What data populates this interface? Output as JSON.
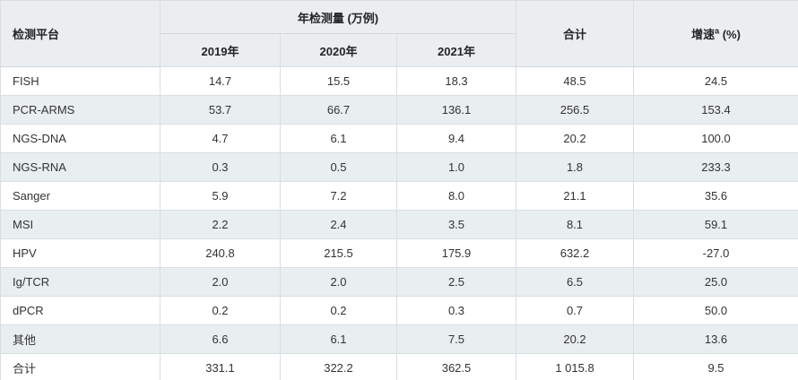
{
  "table": {
    "header": {
      "platform_label": "检测平台",
      "group_label": "年检测量 (万例)",
      "year_labels": [
        "2019年",
        "2020年",
        "2021年"
      ],
      "total_label": "合计",
      "growth_label": "增速",
      "growth_sup": "a",
      "growth_unit": " (%)"
    },
    "rows": [
      {
        "platform": "FISH",
        "values": [
          "14.7",
          "15.5",
          "18.3",
          "48.5",
          "24.5"
        ]
      },
      {
        "platform": "PCR-ARMS",
        "values": [
          "53.7",
          "66.7",
          "136.1",
          "256.5",
          "153.4"
        ]
      },
      {
        "platform": "NGS-DNA",
        "values": [
          "4.7",
          "6.1",
          "9.4",
          "20.2",
          "100.0"
        ]
      },
      {
        "platform": "NGS-RNA",
        "values": [
          "0.3",
          "0.5",
          "1.0",
          "1.8",
          "233.3"
        ]
      },
      {
        "platform": "Sanger",
        "values": [
          "5.9",
          "7.2",
          "8.0",
          "21.1",
          "35.6"
        ]
      },
      {
        "platform": "MSI",
        "values": [
          "2.2",
          "2.4",
          "3.5",
          "8.1",
          "59.1"
        ]
      },
      {
        "platform": "HPV",
        "values": [
          "240.8",
          "215.5",
          "175.9",
          "632.2",
          "-27.0"
        ]
      },
      {
        "platform": "Ig/TCR",
        "values": [
          "2.0",
          "2.0",
          "2.5",
          "6.5",
          "25.0"
        ]
      },
      {
        "platform": "dPCR",
        "values": [
          "0.2",
          "0.2",
          "0.3",
          "0.7",
          "50.0"
        ]
      },
      {
        "platform": "其他",
        "values": [
          "6.6",
          "6.1",
          "7.5",
          "20.2",
          "13.6"
        ]
      },
      {
        "platform": "合计",
        "values": [
          "331.1",
          "322.2",
          "362.5",
          "1 015.8",
          "9.5"
        ]
      }
    ]
  },
  "colors": {
    "header_bg": "#ebeef0",
    "stripe_bg": "#e9eef1",
    "row_bg": "#ffffff",
    "border": "#d9dee2",
    "text": "#333333"
  },
  "chart_data": {
    "type": "table",
    "title": "",
    "column_group": {
      "label": "年检测量 (万例)",
      "spans": [
        "2019年",
        "2020年",
        "2021年"
      ]
    },
    "columns": [
      "检测平台",
      "2019年",
      "2020年",
      "2021年",
      "合计",
      "增速 a (%)"
    ],
    "rows": [
      [
        "FISH",
        14.7,
        15.5,
        18.3,
        48.5,
        24.5
      ],
      [
        "PCR-ARMS",
        53.7,
        66.7,
        136.1,
        256.5,
        153.4
      ],
      [
        "NGS-DNA",
        4.7,
        6.1,
        9.4,
        20.2,
        100.0
      ],
      [
        "NGS-RNA",
        0.3,
        0.5,
        1.0,
        1.8,
        233.3
      ],
      [
        "Sanger",
        5.9,
        7.2,
        8.0,
        21.1,
        35.6
      ],
      [
        "MSI",
        2.2,
        2.4,
        3.5,
        8.1,
        59.1
      ],
      [
        "HPV",
        240.8,
        215.5,
        175.9,
        632.2,
        -27.0
      ],
      [
        "Ig/TCR",
        2.0,
        2.0,
        2.5,
        6.5,
        25.0
      ],
      [
        "dPCR",
        0.2,
        0.2,
        0.3,
        0.7,
        50.0
      ],
      [
        "其他",
        6.6,
        6.1,
        7.5,
        20.2,
        13.6
      ],
      [
        "合计",
        331.1,
        322.2,
        362.5,
        1015.8,
        9.5
      ]
    ]
  }
}
